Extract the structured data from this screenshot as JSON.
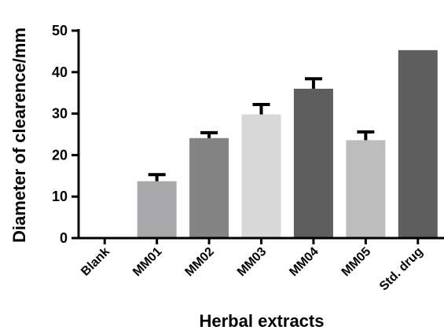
{
  "chart_data": {
    "type": "bar",
    "xlabel": "Herbal extracts",
    "ylabel": "Diameter of clearence/mm",
    "ylim": [
      0,
      50
    ],
    "yticks": [
      0,
      10,
      20,
      30,
      40,
      50
    ],
    "grid": false,
    "legend": "none",
    "categories": [
      "Blank",
      "MM01",
      "MM02",
      "MM03",
      "MM04",
      "MM05",
      "Std. drug"
    ],
    "values": [
      0,
      13.7,
      24.1,
      29.8,
      36.0,
      23.6,
      45.3
    ],
    "error_upper": [
      0,
      1.6,
      1.3,
      2.4,
      2.4,
      2.0,
      0
    ],
    "colors": [
      "#ffffff",
      "#a8a8aa",
      "#848484",
      "#d8d8d8",
      "#5e5e5e",
      "#bdbdbd",
      "#5e5e5e"
    ],
    "error_color": "#000000",
    "axis_color": "#000000"
  }
}
